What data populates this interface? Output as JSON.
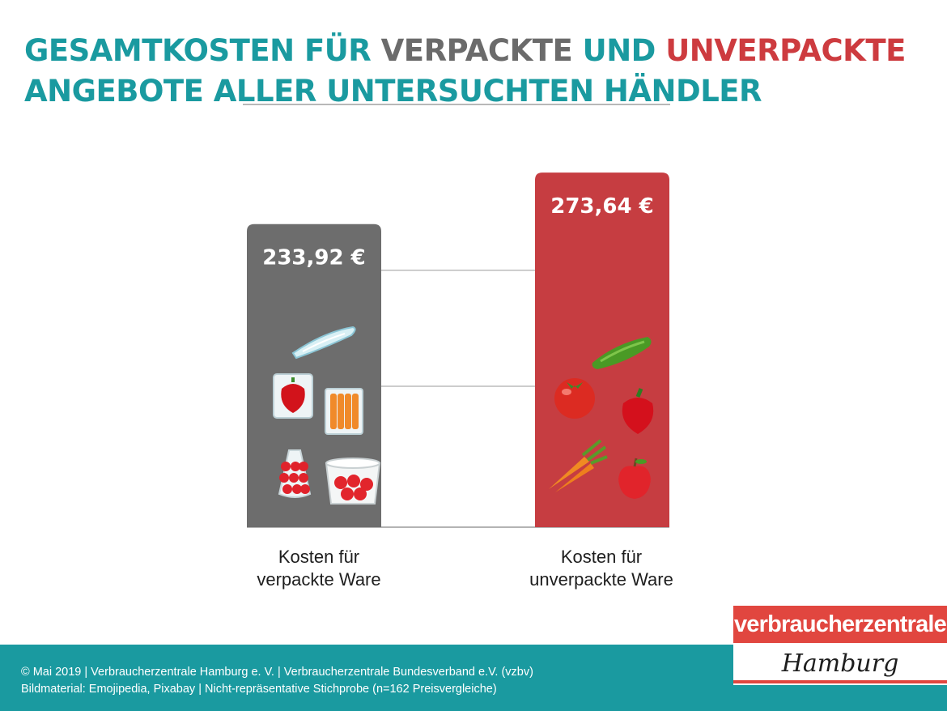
{
  "title": {
    "line1_part1": "Gesamtkosten für ",
    "line1_part2": "verpackte",
    "line1_part3": " und ",
    "line1_part4": "unverpackte",
    "line2": "Angebote aller untersuchten Händler"
  },
  "chart_data": {
    "type": "bar",
    "categories": [
      "Kosten für verpackte Ware",
      "Kosten für unverpackte Ware"
    ],
    "values": [
      233.92,
      273.64
    ],
    "unit": "€",
    "value_labels": [
      "233,92 €",
      "273,64 €"
    ],
    "colors": [
      "#6d6d6d",
      "#c63d41"
    ],
    "grid": true,
    "illustrations": [
      [
        "cucumber-in-plastic-icon",
        "bell-pepper-in-plastic-icon",
        "carrots-in-plastic-icon",
        "apples-in-net-bag-icon",
        "tomatoes-in-tub-icon"
      ],
      [
        "cucumber-icon",
        "tomato-icon",
        "bell-pepper-icon",
        "carrots-icon",
        "apple-icon"
      ]
    ]
  },
  "labels": {
    "cat1_line1": "Kosten für",
    "cat1_line2": "verpackte Ware",
    "cat2_line1": "Kosten für",
    "cat2_line2": "unverpackte Ware"
  },
  "footer": {
    "line1": "© Mai 2019 | Verbraucherzentrale Hamburg e. V. | Verbraucherzentrale Bundesverband e.V. (vzbv)",
    "line2": "Bildmaterial: Emojipedia, Pixabay | Nicht-repräsentative Stichprobe (n=162 Preisvergleiche)"
  },
  "logo": {
    "top": "verbraucherzentrale",
    "bottom": "Hamburg"
  }
}
